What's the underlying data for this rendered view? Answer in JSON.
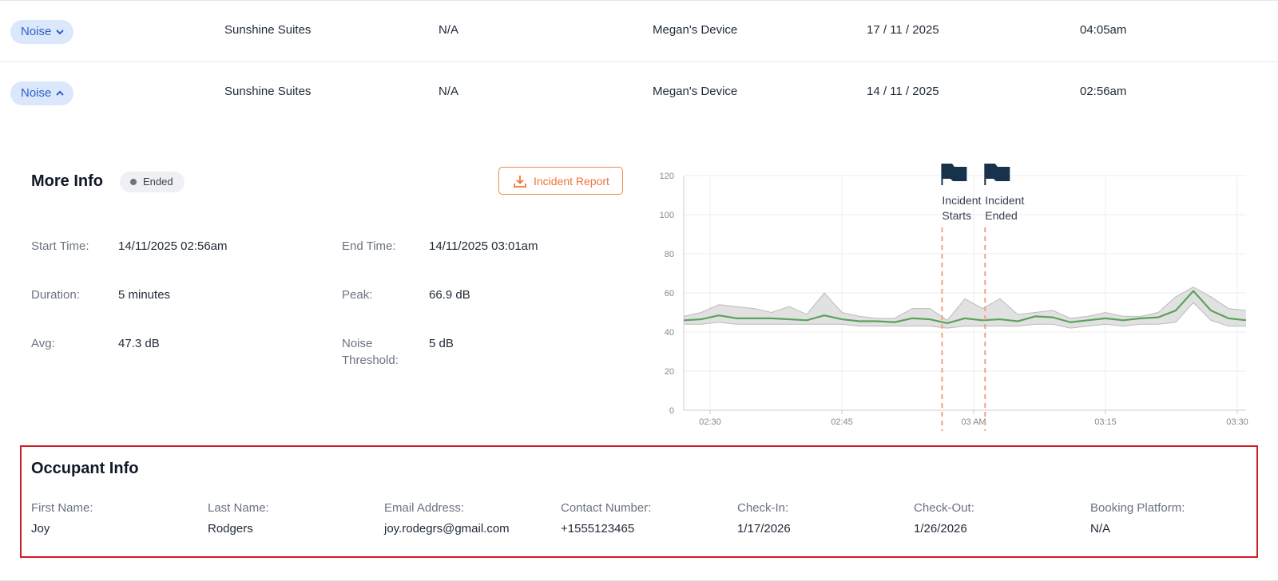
{
  "rows": [
    {
      "type": "Noise",
      "property": "Sunshine Suites",
      "unit": "N/A",
      "device": "Megan's Device",
      "date": "17 / 11 / 2025",
      "time": "04:05am"
    },
    {
      "type": "Noise",
      "property": "Sunshine Suites",
      "unit": "N/A",
      "device": "Megan's Device",
      "date": "14 / 11 / 2025",
      "time": "02:56am"
    }
  ],
  "more_info": {
    "title": "More Info",
    "status": "Ended",
    "button": "Incident Report",
    "fields": [
      {
        "label": "Start Time:",
        "value": "14/11/2025 02:56am"
      },
      {
        "label": "End Time:",
        "value": "14/11/2025 03:01am"
      },
      {
        "label": "Duration:",
        "value": "5 minutes"
      },
      {
        "label": "Peak:",
        "value": "66.9 dB"
      },
      {
        "label": "Avg:",
        "value": "47.3 dB"
      },
      {
        "label": "Noise Threshold:",
        "value": "5 dB"
      }
    ]
  },
  "chart_data": {
    "type": "line",
    "x": [
      147,
      149,
      151,
      153,
      155,
      157,
      159,
      161,
      163,
      165,
      167,
      169,
      171,
      173,
      175,
      177,
      179,
      181,
      183,
      185,
      187,
      189,
      191,
      193,
      195,
      197,
      199,
      201,
      203,
      205,
      207,
      209,
      211
    ],
    "series": [
      {
        "color": "#5aa25a",
        "values": [
          46,
          46.5,
          48.5,
          47,
          47,
          47,
          46.5,
          46,
          48.5,
          46.5,
          45.5,
          45.5,
          45,
          47,
          46.5,
          44.5,
          47,
          46,
          46.5,
          45.5,
          48,
          47.5,
          45,
          46,
          47,
          46,
          47,
          47.5,
          51,
          61,
          51,
          47,
          46
        ]
      }
    ],
    "range": {
      "color": "#dcdcdc",
      "upper": [
        48,
        50,
        54,
        53,
        52,
        50,
        53,
        49,
        60,
        50,
        48,
        47,
        47,
        52,
        52,
        46,
        57,
        52,
        57,
        49,
        50,
        51,
        47,
        48,
        50,
        48,
        48,
        50,
        58,
        63,
        58,
        52,
        51
      ],
      "lower": [
        44,
        44,
        45,
        44,
        44,
        44,
        44,
        44,
        44,
        44,
        43,
        43,
        43,
        43,
        43,
        42,
        43,
        43,
        43,
        43,
        44,
        44,
        42,
        43,
        44,
        43,
        44,
        44,
        45,
        55,
        46,
        43,
        43
      ]
    },
    "xlim": [
      147,
      211
    ],
    "xticks": [
      {
        "value": 150,
        "label": "02:30"
      },
      {
        "value": 165,
        "label": "02:45"
      },
      {
        "value": 180,
        "label": "03 AM"
      },
      {
        "value": 195,
        "label": "03:15"
      },
      {
        "value": 210,
        "label": "03:30"
      }
    ],
    "ylim": [
      0,
      120
    ],
    "yticks": [
      0,
      20,
      40,
      60,
      80,
      100,
      120
    ],
    "grid": true,
    "annotations": [
      {
        "x": 176.4,
        "label": "Incident Starts",
        "color": "#f2a27a"
      },
      {
        "x": 181.3,
        "label": "Incident Ended",
        "color": "#f2a27a"
      }
    ]
  },
  "occupant_info": {
    "title": "Occupant Info",
    "fields": [
      {
        "label": "First Name:",
        "value": "Joy"
      },
      {
        "label": "Last Name:",
        "value": "Rodgers"
      },
      {
        "label": "Email Address:",
        "value": "joy.rodegrs@gmail.com"
      },
      {
        "label": "Contact Number:",
        "value": "+1555123465"
      },
      {
        "label": "Check-In:",
        "value": "1/17/2026"
      },
      {
        "label": "Check-Out:",
        "value": "1/26/2026"
      },
      {
        "label": "Booking Platform:",
        "value": "N/A"
      }
    ]
  }
}
